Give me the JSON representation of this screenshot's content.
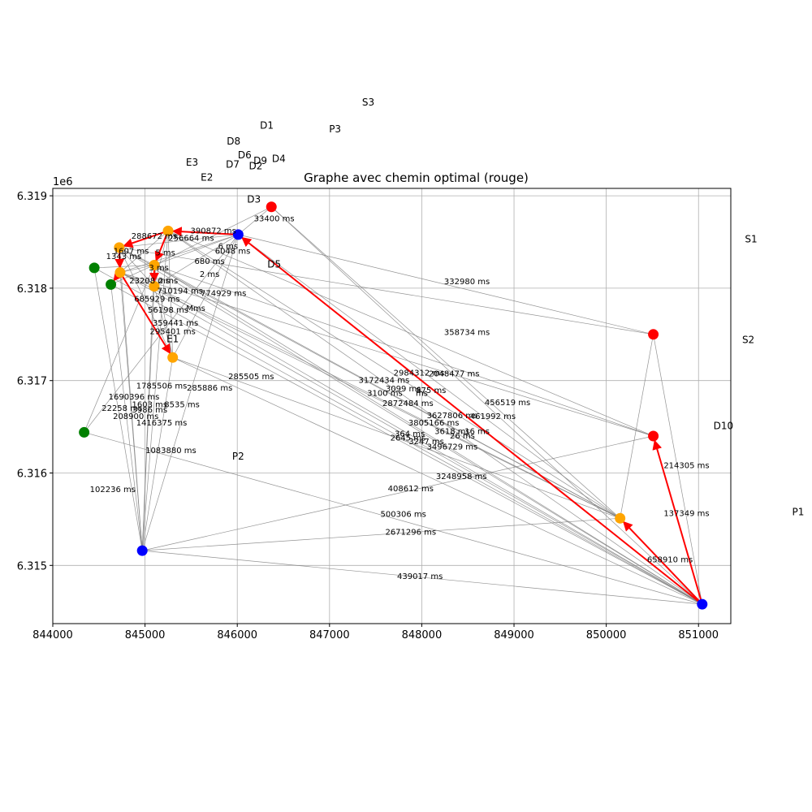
{
  "chart_data": {
    "type": "scatter",
    "title": "Graphe avec chemin optimal (rouge)",
    "xlabel": "",
    "ylabel": "",
    "y_offset_label": "1e6",
    "xlim": [
      844000,
      851350
    ],
    "ylim": [
      6314370,
      6319080
    ],
    "xticks": [
      "844000",
      "845000",
      "846000",
      "847000",
      "848000",
      "849000",
      "850000",
      "851000"
    ],
    "xtick_values": [
      844000,
      845000,
      846000,
      847000,
      848000,
      849000,
      850000,
      851000
    ],
    "yticks": [
      "6.315",
      "6.316",
      "6.317",
      "6.318",
      "6.319"
    ],
    "ytick_values": [
      6315000,
      6316000,
      6317000,
      6318000,
      6319000
    ],
    "grid": true,
    "colors": {
      "red": "#ff0000",
      "blue": "#0000ff",
      "orange": "#ffa500",
      "green": "#008000",
      "gray_edge": "#808080",
      "path": "#ff0000"
    },
    "nodes": [
      {
        "id": "n1",
        "x": 846370,
        "y": 6318880,
        "color": "red"
      },
      {
        "id": "n2",
        "x": 845250,
        "y": 6318620,
        "color": "orange"
      },
      {
        "id": "n3",
        "x": 846010,
        "y": 6318580,
        "color": "blue"
      },
      {
        "id": "n4",
        "x": 844720,
        "y": 6318440,
        "color": "orange"
      },
      {
        "id": "n5",
        "x": 844450,
        "y": 6318220,
        "color": "green"
      },
      {
        "id": "n6",
        "x": 844730,
        "y": 6318170,
        "color": "orange"
      },
      {
        "id": "n7",
        "x": 844630,
        "y": 6318040,
        "color": "green"
      },
      {
        "id": "n8",
        "x": 845100,
        "y": 6318250,
        "color": "orange"
      },
      {
        "id": "n9",
        "x": 845100,
        "y": 6318020,
        "color": "orange"
      },
      {
        "id": "n10",
        "x": 845300,
        "y": 6317250,
        "color": "orange"
      },
      {
        "id": "n11",
        "x": 850510,
        "y": 6317500,
        "color": "red"
      },
      {
        "id": "n12",
        "x": 844340,
        "y": 6316440,
        "color": "green"
      },
      {
        "id": "n13",
        "x": 850510,
        "y": 6316400,
        "color": "red"
      },
      {
        "id": "n14",
        "x": 850150,
        "y": 6315510,
        "color": "orange"
      },
      {
        "id": "n15",
        "x": 844970,
        "y": 6315160,
        "color": "blue"
      },
      {
        "id": "n16",
        "x": 851040,
        "y": 6314580,
        "color": "blue"
      }
    ],
    "optimal_path": [
      [
        "n16",
        "n13"
      ],
      [
        "n16",
        "n14"
      ],
      [
        "n16",
        "n3"
      ],
      [
        "n3",
        "n2"
      ],
      [
        "n2",
        "n4"
      ],
      [
        "n4",
        "n6"
      ],
      [
        "n6",
        "n7"
      ],
      [
        "n6",
        "n10"
      ],
      [
        "n2",
        "n8"
      ],
      [
        "n8",
        "n9"
      ]
    ],
    "edges": [
      [
        "n16",
        "n1"
      ],
      [
        "n16",
        "n3"
      ],
      [
        "n16",
        "n2"
      ],
      [
        "n16",
        "n4"
      ],
      [
        "n16",
        "n5"
      ],
      [
        "n16",
        "n6"
      ],
      [
        "n16",
        "n7"
      ],
      [
        "n16",
        "n8"
      ],
      [
        "n16",
        "n9"
      ],
      [
        "n16",
        "n10"
      ],
      [
        "n16",
        "n11"
      ],
      [
        "n16",
        "n12"
      ],
      [
        "n16",
        "n15"
      ],
      [
        "n14",
        "n1"
      ],
      [
        "n14",
        "n3"
      ],
      [
        "n14",
        "n2"
      ],
      [
        "n14",
        "n4"
      ],
      [
        "n14",
        "n6"
      ],
      [
        "n14",
        "n8"
      ],
      [
        "n14",
        "n9"
      ],
      [
        "n14",
        "n10"
      ],
      [
        "n14",
        "n15"
      ],
      [
        "n14",
        "n11"
      ],
      [
        "n15",
        "n3"
      ],
      [
        "n15",
        "n2"
      ],
      [
        "n15",
        "n4"
      ],
      [
        "n15",
        "n5"
      ],
      [
        "n15",
        "n6"
      ],
      [
        "n15",
        "n7"
      ],
      [
        "n15",
        "n8"
      ],
      [
        "n15",
        "n9"
      ],
      [
        "n15",
        "n10"
      ],
      [
        "n15",
        "n13"
      ],
      [
        "n11",
        "n3"
      ],
      [
        "n11",
        "n4"
      ],
      [
        "n13",
        "n2"
      ],
      [
        "n13",
        "n8"
      ],
      [
        "n13",
        "n6"
      ],
      [
        "n12",
        "n3"
      ],
      [
        "n12",
        "n8"
      ],
      [
        "n10",
        "n3"
      ],
      [
        "n10",
        "n2"
      ],
      [
        "n10",
        "n4"
      ],
      [
        "n10",
        "n6"
      ],
      [
        "n10",
        "n8"
      ],
      [
        "n10",
        "n9"
      ],
      [
        "n1",
        "n3"
      ],
      [
        "n1",
        "n8"
      ],
      [
        "n3",
        "n4"
      ],
      [
        "n3",
        "n6"
      ],
      [
        "n3",
        "n8"
      ],
      [
        "n3",
        "n9"
      ],
      [
        "n2",
        "n6"
      ],
      [
        "n2",
        "n9"
      ],
      [
        "n4",
        "n8"
      ],
      [
        "n5",
        "n8"
      ],
      [
        "n6",
        "n8"
      ],
      [
        "n6",
        "n9"
      ],
      [
        "n7",
        "n8"
      ],
      [
        "n4",
        "n9"
      ]
    ],
    "edge_labels": [
      {
        "text": "33400 ms",
        "x": 846400,
        "y": 6318750
      },
      {
        "text": "390872 ms",
        "x": 845740,
        "y": 6318620
      },
      {
        "text": "288672 ms",
        "x": 845100,
        "y": 6318560
      },
      {
        "text": "256664 ms",
        "x": 845500,
        "y": 6318540
      },
      {
        "text": "6 ms",
        "x": 845900,
        "y": 6318450
      },
      {
        "text": "6048 ms",
        "x": 845950,
        "y": 6318400
      },
      {
        "text": "680 ms",
        "x": 845700,
        "y": 6318290
      },
      {
        "text": "2 ms",
        "x": 845700,
        "y": 6318150
      },
      {
        "text": "5 ms",
        "x": 845220,
        "y": 6318380
      },
      {
        "text": "3 ms",
        "x": 845150,
        "y": 6318220
      },
      {
        "text": "1343 ms",
        "x": 844770,
        "y": 6318340
      },
      {
        "text": "1607 ms",
        "x": 844850,
        "y": 6318400
      },
      {
        "text": "23208 ms",
        "x": 845050,
        "y": 6318080
      },
      {
        "text": "2 ms",
        "x": 845250,
        "y": 6318080
      },
      {
        "text": "710194 ms",
        "x": 845380,
        "y": 6317970
      },
      {
        "text": "774929 ms",
        "x": 845850,
        "y": 6317940
      },
      {
        "text": "685929 ms",
        "x": 845130,
        "y": 6317880
      },
      {
        "text": "56198 ms",
        "x": 845250,
        "y": 6317760
      },
      {
        "text": "Mms",
        "x": 845550,
        "y": 6317780
      },
      {
        "text": "359441 ms",
        "x": 845330,
        "y": 6317620
      },
      {
        "text": "295401 ms",
        "x": 845300,
        "y": 6317530
      },
      {
        "text": "285505 ms",
        "x": 846150,
        "y": 6317040
      },
      {
        "text": "1785506 ms",
        "x": 845180,
        "y": 6316940
      },
      {
        "text": "285886 ms",
        "x": 845700,
        "y": 6316920
      },
      {
        "text": "1690396 ms",
        "x": 844880,
        "y": 6316820
      },
      {
        "text": "1603 ms",
        "x": 845050,
        "y": 6316740
      },
      {
        "text": "8535 ms",
        "x": 845400,
        "y": 6316740
      },
      {
        "text": "22258 ms",
        "x": 844750,
        "y": 6316700
      },
      {
        "text": "3986 ms",
        "x": 845050,
        "y": 6316680
      },
      {
        "text": "208900 ms",
        "x": 844900,
        "y": 6316610
      },
      {
        "text": "1416375 ms",
        "x": 845180,
        "y": 6316540
      },
      {
        "text": "1083880 ms",
        "x": 845280,
        "y": 6316240
      },
      {
        "text": "102236 ms",
        "x": 844650,
        "y": 6315820
      },
      {
        "text": "332980 ms",
        "x": 848490,
        "y": 6318070
      },
      {
        "text": "358734 ms",
        "x": 848490,
        "y": 6317520
      },
      {
        "text": "2984312 ms",
        "x": 847970,
        "y": 6317080
      },
      {
        "text": "2048477 ms",
        "x": 848350,
        "y": 6317070
      },
      {
        "text": "3172434 ms",
        "x": 847590,
        "y": 6317000
      },
      {
        "text": "3099 ms",
        "x": 847800,
        "y": 6316910
      },
      {
        "text": "875 ms",
        "x": 848100,
        "y": 6316890
      },
      {
        "text": "3100 ms",
        "x": 847600,
        "y": 6316860
      },
      {
        "text": "ms",
        "x": 848000,
        "y": 6316860
      },
      {
        "text": "2872484 ms",
        "x": 847850,
        "y": 6316750
      },
      {
        "text": "456519 ms",
        "x": 848930,
        "y": 6316760
      },
      {
        "text": "3627806 ms",
        "x": 848330,
        "y": 6316620
      },
      {
        "text": "461992 ms",
        "x": 848770,
        "y": 6316610
      },
      {
        "text": "3805166 ms",
        "x": 848130,
        "y": 6316540
      },
      {
        "text": "3618 ms",
        "x": 848330,
        "y": 6316450
      },
      {
        "text": "16 ms",
        "x": 848600,
        "y": 6316450
      },
      {
        "text": "364 ms",
        "x": 847870,
        "y": 6316420
      },
      {
        "text": "26 ms",
        "x": 848440,
        "y": 6316400
      },
      {
        "text": "2645 ms",
        "x": 847850,
        "y": 6316380
      },
      {
        "text": "3247 ms",
        "x": 848050,
        "y": 6316340
      },
      {
        "text": "3496729 ms",
        "x": 848330,
        "y": 6316280
      },
      {
        "text": "3248958 ms",
        "x": 848430,
        "y": 6315960
      },
      {
        "text": "408612 ms",
        "x": 847880,
        "y": 6315830
      },
      {
        "text": "500306 ms",
        "x": 847800,
        "y": 6315550
      },
      {
        "text": "2671296 ms",
        "x": 847880,
        "y": 6315360
      },
      {
        "text": "439017 ms",
        "x": 847980,
        "y": 6314880
      },
      {
        "text": "214305 ms",
        "x": 850870,
        "y": 6316080
      },
      {
        "text": "137349 ms",
        "x": 850870,
        "y": 6315560
      },
      {
        "text": "658910 ms",
        "x": 850690,
        "y": 6315060
      }
    ],
    "annotations": [
      {
        "text": "S3",
        "x": 847420,
        "y": 6320010
      },
      {
        "text": "D1",
        "x": 846320,
        "y": 6319760
      },
      {
        "text": "P3",
        "x": 847060,
        "y": 6319720
      },
      {
        "text": "D8",
        "x": 845960,
        "y": 6319590
      },
      {
        "text": "D6",
        "x": 846080,
        "y": 6319440
      },
      {
        "text": "D9",
        "x": 846250,
        "y": 6319380
      },
      {
        "text": "D4",
        "x": 846450,
        "y": 6319400
      },
      {
        "text": "E3",
        "x": 845510,
        "y": 6319360
      },
      {
        "text": "D7",
        "x": 845950,
        "y": 6319340
      },
      {
        "text": "D2",
        "x": 846200,
        "y": 6319320
      },
      {
        "text": "E2",
        "x": 845670,
        "y": 6319200
      },
      {
        "text": "D3",
        "x": 846180,
        "y": 6318960
      },
      {
        "text": "D5",
        "x": 846400,
        "y": 6318260
      },
      {
        "text": "E1",
        "x": 845300,
        "y": 6317450
      },
      {
        "text": "P2",
        "x": 846010,
        "y": 6316180
      },
      {
        "text": "S1",
        "x": 851570,
        "y": 6318530
      },
      {
        "text": "S2",
        "x": 851540,
        "y": 6317440
      },
      {
        "text": "D10",
        "x": 851270,
        "y": 6316510
      },
      {
        "text": "P1",
        "x": 852080,
        "y": 6315580
      }
    ]
  }
}
